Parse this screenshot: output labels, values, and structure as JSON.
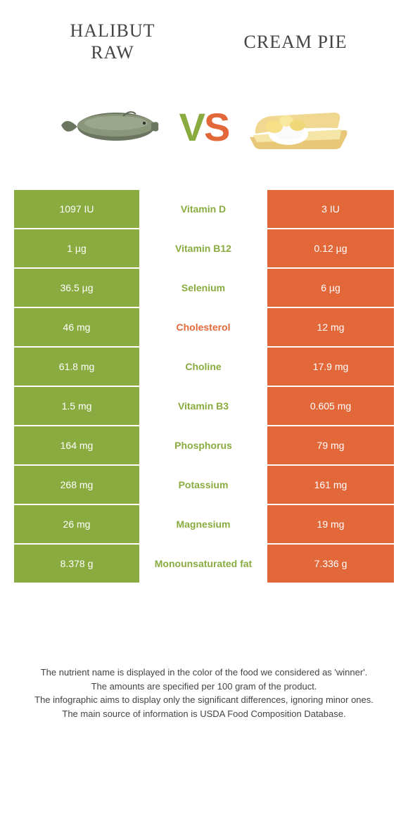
{
  "colors": {
    "green": "#8aab3f",
    "orange": "#e2683a",
    "white": "#ffffff"
  },
  "header": {
    "left_title": "HALIBUT\nRAW",
    "right_title": "CREAM PIE"
  },
  "vs": {
    "v": "V",
    "s": "S"
  },
  "footer": {
    "line1": "The nutrient name is displayed in the color of the food we considered as 'winner'.",
    "line2": "The amounts are specified per 100 gram of the product.",
    "line3": "The infographic aims to display only the significant differences, ignoring minor ones.",
    "line4": "The main source of information is USDA Food Composition Database."
  },
  "rows": [
    {
      "left": "1097 IU",
      "label": "Vitamin D",
      "right": "3 IU",
      "winner": "left"
    },
    {
      "left": "1 µg",
      "label": "Vitamin B12",
      "right": "0.12 µg",
      "winner": "left"
    },
    {
      "left": "36.5 µg",
      "label": "Selenium",
      "right": "6 µg",
      "winner": "left"
    },
    {
      "left": "46 mg",
      "label": "Cholesterol",
      "right": "12 mg",
      "winner": "right"
    },
    {
      "left": "61.8 mg",
      "label": "Choline",
      "right": "17.9 mg",
      "winner": "left"
    },
    {
      "left": "1.5 mg",
      "label": "Vitamin B3",
      "right": "0.605 mg",
      "winner": "left"
    },
    {
      "left": "164 mg",
      "label": "Phosphorus",
      "right": "79 mg",
      "winner": "left"
    },
    {
      "left": "268 mg",
      "label": "Potassium",
      "right": "161 mg",
      "winner": "left"
    },
    {
      "left": "26 mg",
      "label": "Magnesium",
      "right": "19 mg",
      "winner": "left"
    },
    {
      "left": "8.378 g",
      "label": "Monounsaturated fat",
      "right": "7.336 g",
      "winner": "left"
    }
  ]
}
